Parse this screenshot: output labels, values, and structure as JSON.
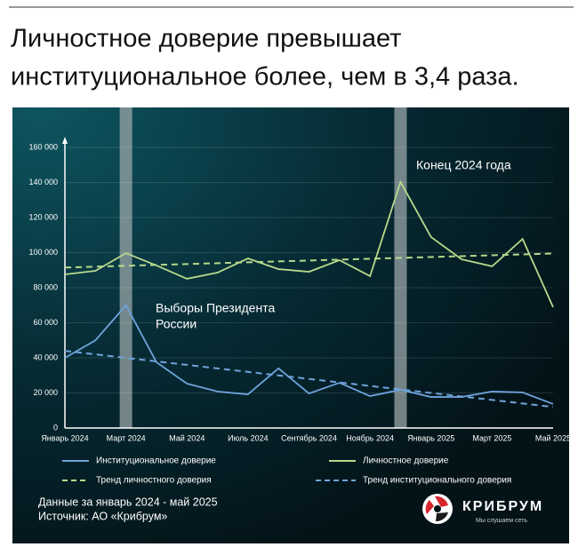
{
  "chart_data": {
    "type": "line",
    "title": [
      "Личностное доверие превышает",
      "институциональное более, чем в 3,4 раза."
    ],
    "categories": [
      "Январь 2024",
      null,
      "Март 2024",
      null,
      "Май 2024",
      null,
      "Июль 2024",
      null,
      "Сентябрь 2024",
      null,
      "Ноябрь 2024",
      null,
      "Январь 2025",
      null,
      "Март 2025",
      null,
      "Май 2025"
    ],
    "series": [
      {
        "name": "Институциональное доверие",
        "color": "#6fa3dc",
        "dash": false,
        "values": [
          40000,
          50000,
          70000,
          37500,
          25300,
          20800,
          19200,
          34000,
          19700,
          25800,
          18200,
          21800,
          17700,
          17700,
          20800,
          20300,
          13700
        ]
      },
      {
        "name": "Личностное доверие",
        "color": "#b7d98c",
        "dash": false,
        "values": [
          87600,
          89600,
          99700,
          92700,
          85100,
          88600,
          96700,
          90600,
          89100,
          95700,
          86600,
          140300,
          108900,
          96200,
          92200,
          107800,
          68900
        ]
      },
      {
        "name": "Тренд личностного доверия",
        "color": "#b7d98c",
        "dash": true,
        "values": [
          91500,
          92000,
          92500,
          93000,
          93500,
          94000,
          94500,
          95000,
          95500,
          96000,
          96500,
          97000,
          97500,
          98000,
          98500,
          99000,
          99500
        ]
      },
      {
        "name": "Тренд институционального доверия",
        "color": "#6fa3dc",
        "dash": true,
        "values": [
          44000,
          42000,
          40000,
          38000,
          36000,
          34000,
          32000,
          30000,
          28000,
          26000,
          24000,
          22000,
          20000,
          18000,
          16000,
          14000,
          12000
        ]
      }
    ],
    "ylim": [
      0,
      160000
    ],
    "yticks": [
      0,
      {
        "value": 20000,
        "label": "20 000"
      },
      {
        "value": 40000,
        "label": "40 000"
      },
      {
        "value": 60000,
        "label": "60 000"
      },
      {
        "value": 80000,
        "label": "80 000"
      },
      {
        "value": 100000,
        "label": "100 000"
      },
      {
        "value": 120000,
        "label": "120 000"
      },
      {
        "value": 140000,
        "label": "140 000"
      },
      {
        "value": 160000,
        "label": "160 000"
      }
    ],
    "grid": true,
    "annotations": [
      "Выборы Президента",
      "России",
      "Конец 2024 года"
    ],
    "footnotes": [
      "Данные за январь 2024 - май 2025",
      "Источник: АО «Крибрум»"
    ],
    "logo": {
      "name": "КРИБРУМ",
      "tagline": "Мы слушаем сеть"
    }
  }
}
